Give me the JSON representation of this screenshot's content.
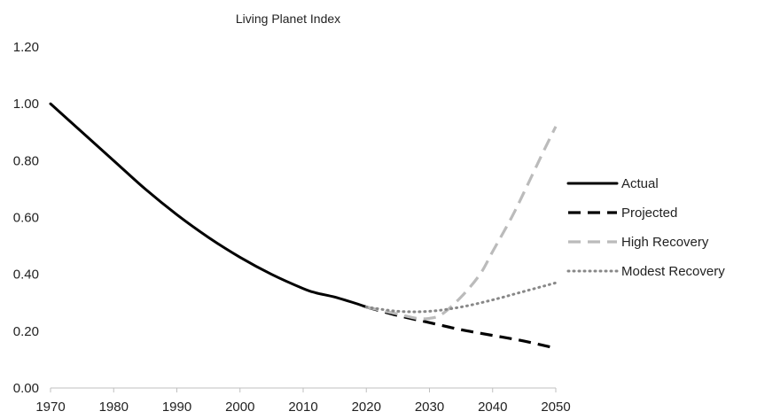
{
  "chart_data": {
    "type": "line",
    "title": "Living Planet Index",
    "xlabel": "",
    "ylabel": "",
    "xlim": [
      1970,
      2050
    ],
    "ylim": [
      0,
      1.2
    ],
    "x_ticks": [
      1970,
      1980,
      1990,
      2000,
      2010,
      2020,
      2030,
      2040,
      2050
    ],
    "x_tick_labels": [
      "1970",
      "1980",
      "1990",
      "2000",
      "2010",
      "2020",
      "2030",
      "2040",
      "2050"
    ],
    "y_ticks": [
      0,
      0.2,
      0.4,
      0.6,
      0.8,
      1.0,
      1.2
    ],
    "y_tick_labels": [
      "0.00",
      "0.20",
      "0.40",
      "0.60",
      "0.80",
      "1.00",
      "1.20"
    ],
    "grid": false,
    "legend_position": "right",
    "series": [
      {
        "name": "Actual",
        "style": "solid",
        "color": "#000000",
        "x": [
          1970,
          1975,
          1980,
          1985,
          1990,
          1995,
          2000,
          2005,
          2010,
          2012,
          2015,
          2018,
          2020
        ],
        "values": [
          1.0,
          0.9,
          0.8,
          0.7,
          0.61,
          0.53,
          0.46,
          0.4,
          0.35,
          0.335,
          0.32,
          0.3,
          0.285
        ]
      },
      {
        "name": "Projected",
        "style": "dashed",
        "color": "#000000",
        "x": [
          2020,
          2025,
          2030,
          2035,
          2040,
          2045,
          2050
        ],
        "values": [
          0.285,
          0.255,
          0.23,
          0.205,
          0.185,
          0.165,
          0.14
        ]
      },
      {
        "name": "High Recovery",
        "style": "dashed",
        "color": "#bbbbbb",
        "x": [
          2020,
          2025,
          2028,
          2030,
          2032,
          2035,
          2038,
          2040,
          2043,
          2045,
          2048,
          2050
        ],
        "values": [
          0.285,
          0.26,
          0.245,
          0.245,
          0.26,
          0.32,
          0.4,
          0.48,
          0.6,
          0.69,
          0.83,
          0.92
        ]
      },
      {
        "name": "Modest Recovery",
        "style": "dotted",
        "color": "#888888",
        "x": [
          2020,
          2025,
          2030,
          2035,
          2040,
          2045,
          2050
        ],
        "values": [
          0.285,
          0.27,
          0.27,
          0.285,
          0.31,
          0.34,
          0.37
        ]
      }
    ]
  }
}
